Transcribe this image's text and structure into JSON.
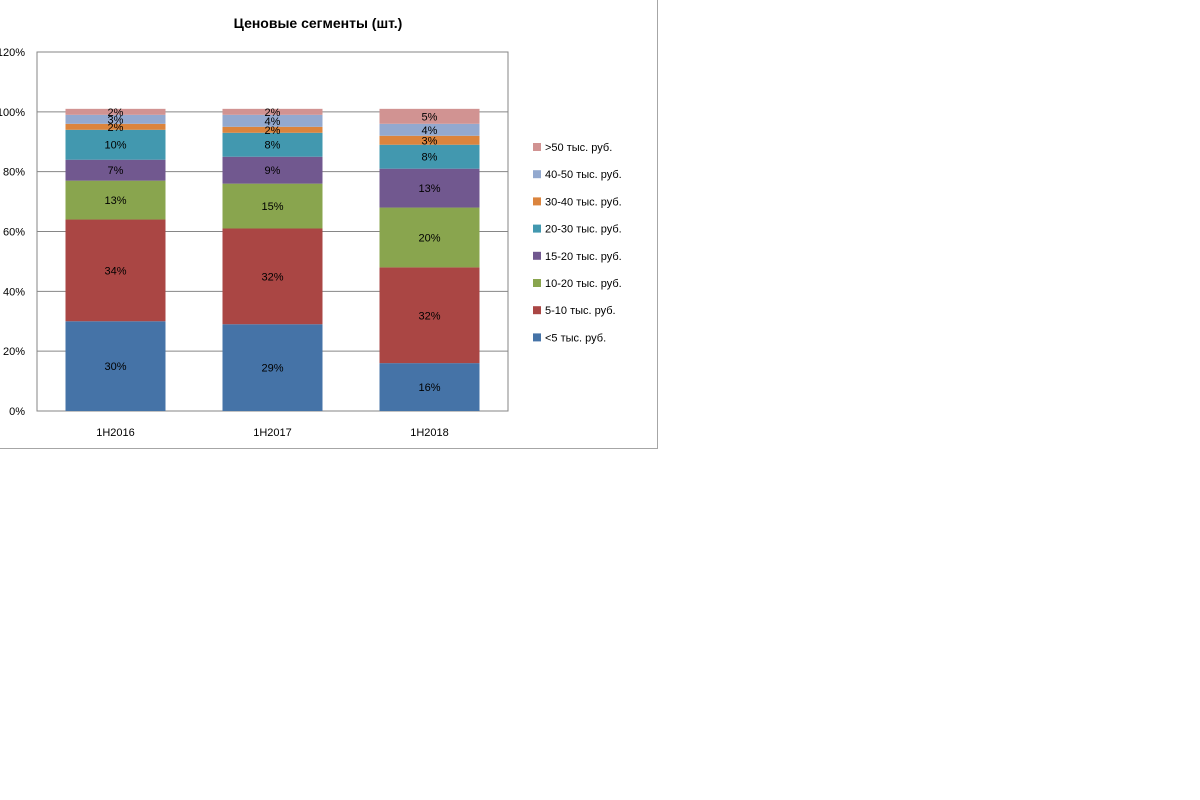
{
  "chart_data": {
    "type": "bar",
    "stacked": true,
    "title": "Ценовые сегменты (шт.)",
    "xlabel": "",
    "ylabel": "",
    "categories": [
      "1H2016",
      "1H2017",
      "1H2018"
    ],
    "ylim": [
      0,
      1.2
    ],
    "yticks": [
      0,
      0.2,
      0.4,
      0.6,
      0.8,
      1.0,
      1.2
    ],
    "ytick_labels": [
      "0%",
      "20%",
      "40%",
      "60%",
      "80%",
      "100%",
      "120%"
    ],
    "grid": true,
    "legend_position": "right",
    "series": [
      {
        "name": "<5 тыс. руб.",
        "color": "#4573a7",
        "values": [
          0.3,
          0.29,
          0.16
        ],
        "labels": [
          "30%",
          "29%",
          "16%"
        ]
      },
      {
        "name": "5-10 тыс. руб.",
        "color": "#aa4644",
        "values": [
          0.34,
          0.32,
          0.32
        ],
        "labels": [
          "34%",
          "32%",
          "32%"
        ]
      },
      {
        "name": "10-20 тыс. руб.",
        "color": "#89a54e",
        "values": [
          0.13,
          0.15,
          0.2
        ],
        "labels": [
          "13%",
          "15%",
          "20%"
        ]
      },
      {
        "name": "15-20 тыс. руб.",
        "color": "#71588f",
        "values": [
          0.07,
          0.09,
          0.13
        ],
        "labels": [
          "7%",
          "9%",
          "13%"
        ]
      },
      {
        "name": "20-30 тыс. руб.",
        "color": "#4298af",
        "values": [
          0.1,
          0.08,
          0.08
        ],
        "labels": [
          "10%",
          "8%",
          "8%"
        ]
      },
      {
        "name": "30-40 тыс. руб.",
        "color": "#db843d",
        "values": [
          0.02,
          0.02,
          0.03
        ],
        "labels": [
          "2%",
          "2%",
          "3%"
        ]
      },
      {
        "name": "40-50 тыс. руб.",
        "color": "#93a9cf",
        "values": [
          0.03,
          0.04,
          0.04
        ],
        "labels": [
          "3%",
          "4%",
          "4%"
        ]
      },
      {
        "name": ">50 тыс. руб.",
        "color": "#d19392",
        "values": [
          0.02,
          0.02,
          0.05
        ],
        "labels": [
          "2%",
          "2%",
          "5%"
        ]
      }
    ]
  }
}
